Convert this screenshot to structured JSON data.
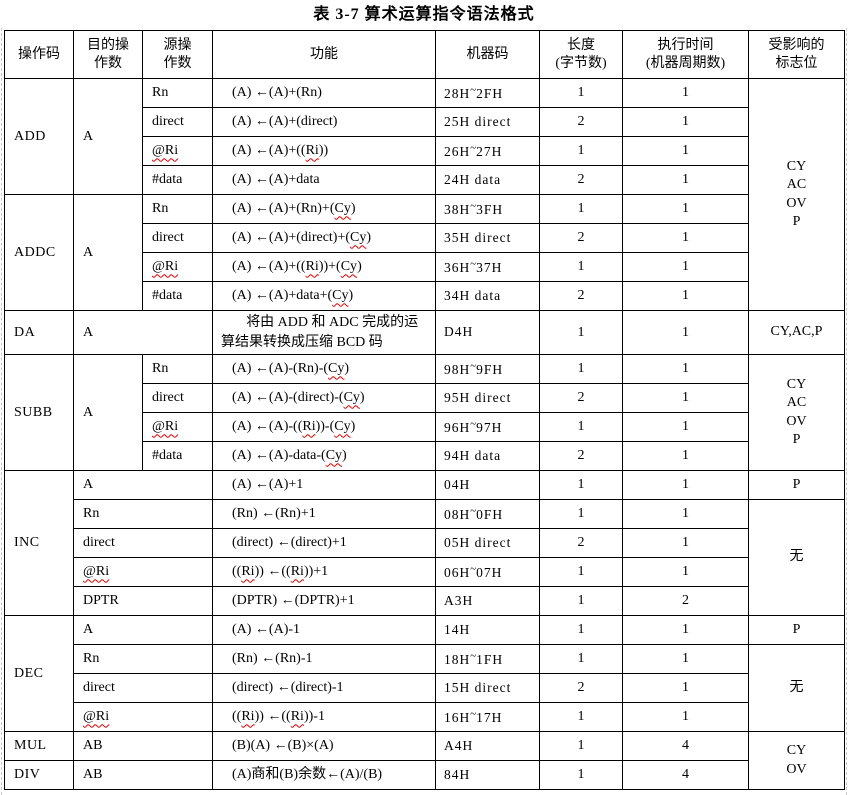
{
  "title": "表 3-7  算术运算指令语法格式",
  "colors": {
    "text": "#000000",
    "border": "#000000",
    "background": "#ffffff",
    "squiggle": "#dd0000",
    "page_boundary": "#c9c9c9"
  },
  "header": {
    "opcode": "操作码",
    "dest": "目的操\n作数",
    "src": "源操\n作数",
    "func": "功能",
    "code": "机器码",
    "length": "长度\n(字节数)",
    "time": "执行时间\n(机器周期数)",
    "flags": "受影响的\n标志位"
  },
  "groups": {
    "add": {
      "opcode": "ADD",
      "dest": "A",
      "rows": [
        {
          "src": "Rn",
          "func": "(A) ←(A)+(Rn)",
          "code": "28H~2FH",
          "len": "1",
          "time": "1"
        },
        {
          "src": "direct",
          "func": "(A) ←(A)+(direct)",
          "code": "25H direct",
          "len": "2",
          "time": "1"
        },
        {
          "src": "@Ri",
          "func": "(A) ←(A)+((Ri))",
          "code": "26H~27H",
          "len": "1",
          "time": "1"
        },
        {
          "src": "#data",
          "func": "(A) ←(A)+data",
          "code": "24H data",
          "len": "2",
          "time": "1"
        }
      ]
    },
    "addc": {
      "opcode": "ADDC",
      "dest": "A",
      "rows": [
        {
          "src": "Rn",
          "func": "(A) ←(A)+(Rn)+(Cy)",
          "code": "38H~3FH",
          "len": "1",
          "time": "1"
        },
        {
          "src": "direct",
          "func": "(A) ←(A)+(direct)+(Cy)",
          "code": "35H direct",
          "len": "2",
          "time": "1"
        },
        {
          "src": "@Ri",
          "func": "(A) ←(A)+((Ri))+(Cy)",
          "code": "36H~37H",
          "len": "1",
          "time": "1"
        },
        {
          "src": "#data",
          "func": "(A) ←(A)+data+(Cy)",
          "code": "34H data",
          "len": "2",
          "time": "1"
        }
      ]
    },
    "flags_add_addc": "CY\nAC\nOV\nP",
    "da": {
      "opcode": "DA",
      "dest": "A",
      "func": "将由 ADD 和 ADC 完成的运算结果转换成压缩 BCD 码",
      "code": "D4H",
      "len": "1",
      "time": "1",
      "flags": "CY,AC,P"
    },
    "subb": {
      "opcode": "SUBB",
      "dest": "A",
      "flags": "CY\nAC\nOV\nP",
      "rows": [
        {
          "src": "Rn",
          "func": "(A) ←(A)-(Rn)-(Cy)",
          "code": "98H~9FH",
          "len": "1",
          "time": "1"
        },
        {
          "src": "direct",
          "func": "(A) ←(A)-(direct)-(Cy)",
          "code": "95H direct",
          "len": "2",
          "time": "1"
        },
        {
          "src": "@Ri",
          "func": "(A) ←(A)-((Ri))-(Cy)",
          "code": "96H~97H",
          "len": "1",
          "time": "1"
        },
        {
          "src": "#data",
          "func": "(A) ←(A)-data-(Cy)",
          "code": "94H data",
          "len": "2",
          "time": "1"
        }
      ]
    },
    "inc": {
      "opcode": "INC",
      "flags_rest": "无",
      "rows": [
        {
          "operand": "A",
          "func": "(A) ←(A)+1",
          "code": "04H",
          "len": "1",
          "time": "1",
          "flags": "P"
        },
        {
          "operand": "Rn",
          "func": "(Rn) ←(Rn)+1",
          "code": "08H~0FH",
          "len": "1",
          "time": "1"
        },
        {
          "operand": "direct",
          "func": "(direct) ←(direct)+1",
          "code": "05H direct",
          "len": "2",
          "time": "1"
        },
        {
          "operand": "@Ri",
          "func": "((Ri)) ←((Ri))+1",
          "code": "06H~07H",
          "len": "1",
          "time": "1"
        },
        {
          "operand": "DPTR",
          "func": "(DPTR) ←(DPTR)+1",
          "code": "A3H",
          "len": "1",
          "time": "2"
        }
      ]
    },
    "dec": {
      "opcode": "DEC",
      "flags_rest": "无",
      "rows": [
        {
          "operand": "A",
          "func": "(A) ←(A)-1",
          "code": "14H",
          "len": "1",
          "time": "1",
          "flags": "P"
        },
        {
          "operand": "Rn",
          "func": "(Rn) ←(Rn)-1",
          "code": "18H~1FH",
          "len": "1",
          "time": "1"
        },
        {
          "operand": "direct",
          "func": "(direct) ←(direct)-1",
          "code": "15H direct",
          "len": "2",
          "time": "1"
        },
        {
          "operand": "@Ri",
          "func": "((Ri)) ←((Ri))-1",
          "code": "16H~17H",
          "len": "1",
          "time": "1"
        }
      ]
    },
    "mul": {
      "opcode": "MUL",
      "operand": "AB",
      "func": "(B)(A) ←(B)×(A)",
      "code": "A4H",
      "len": "1",
      "time": "4"
    },
    "div": {
      "opcode": "DIV",
      "operand": "AB",
      "func": "(A)商和(B)余数←(A)/(B)",
      "code": "84H",
      "len": "1",
      "time": "4"
    },
    "flags_mul_div": "CY\nOV"
  }
}
